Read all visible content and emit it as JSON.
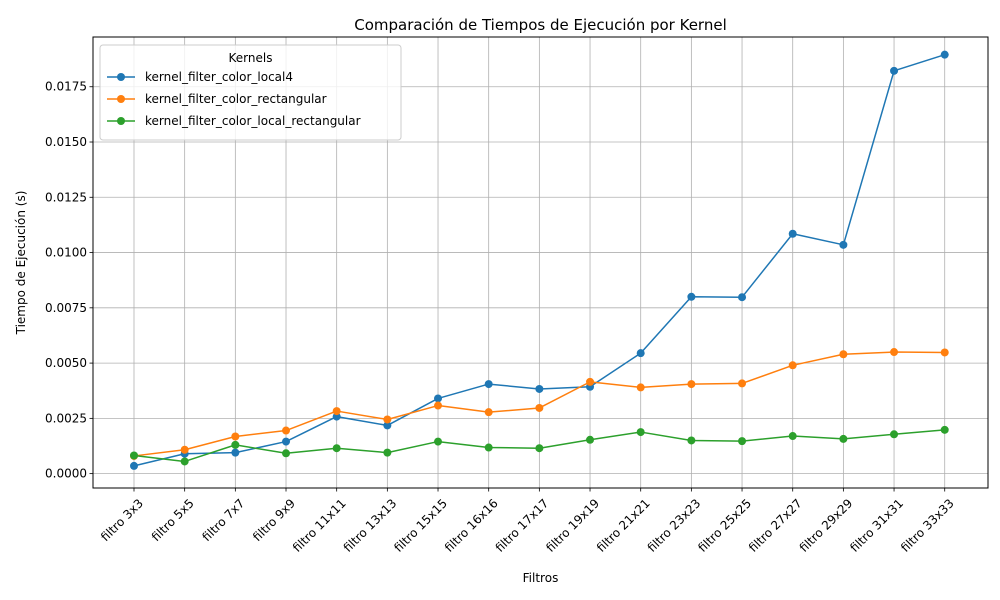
{
  "chart_data": {
    "type": "line",
    "title": "Comparación de Tiempos de Ejecución por Kernel",
    "xlabel": "Filtros",
    "ylabel": "Tiempo de Ejecución (s)",
    "categories": [
      "filtro 3x3",
      "filtro 5x5",
      "filtro 7x7",
      "filtro 9x9",
      "filtro 11x11",
      "filtro 13x13",
      "filtro 15x15",
      "filtro 16x16",
      "filtro 17x17",
      "filtro 19x19",
      "filtro 21x21",
      "filtro 23x23",
      "filtro 25x25",
      "filtro 27x27",
      "filtro 29x29",
      "filtro 31x31",
      "filtro 33x33"
    ],
    "ylim": [
      -0.00065,
      0.01975
    ],
    "yticks": [
      0.0,
      0.0025,
      0.005,
      0.0075,
      0.01,
      0.0125,
      0.015,
      0.0175
    ],
    "ytick_labels": [
      "0.0000",
      "0.0025",
      "0.0050",
      "0.0075",
      "0.0100",
      "0.0125",
      "0.0150",
      "0.0175"
    ],
    "grid": true,
    "legend": {
      "title": "Kernels",
      "placement": "top-left"
    },
    "series": [
      {
        "name": "kernel_filter_color_local4",
        "color": "#1f77b4",
        "values": [
          0.00035,
          0.0009,
          0.00095,
          0.00145,
          0.00258,
          0.00218,
          0.0034,
          0.00405,
          0.00383,
          0.00393,
          0.00545,
          0.008,
          0.00798,
          0.01085,
          0.01035,
          0.01822,
          0.01895
        ]
      },
      {
        "name": "kernel_filter_color_rectangular",
        "color": "#ff7f0e",
        "values": [
          0.0008,
          0.00108,
          0.00168,
          0.00195,
          0.00283,
          0.00245,
          0.00308,
          0.00278,
          0.00297,
          0.00415,
          0.0039,
          0.00405,
          0.00408,
          0.0049,
          0.0054,
          0.0055,
          0.00548
        ]
      },
      {
        "name": "kernel_filter_color_local_rectangular",
        "color": "#2ca02c",
        "values": [
          0.00082,
          0.00055,
          0.0013,
          0.00092,
          0.00115,
          0.00095,
          0.00145,
          0.00118,
          0.00115,
          0.00153,
          0.00188,
          0.0015,
          0.00147,
          0.0017,
          0.00157,
          0.00178,
          0.00198
        ]
      }
    ]
  }
}
